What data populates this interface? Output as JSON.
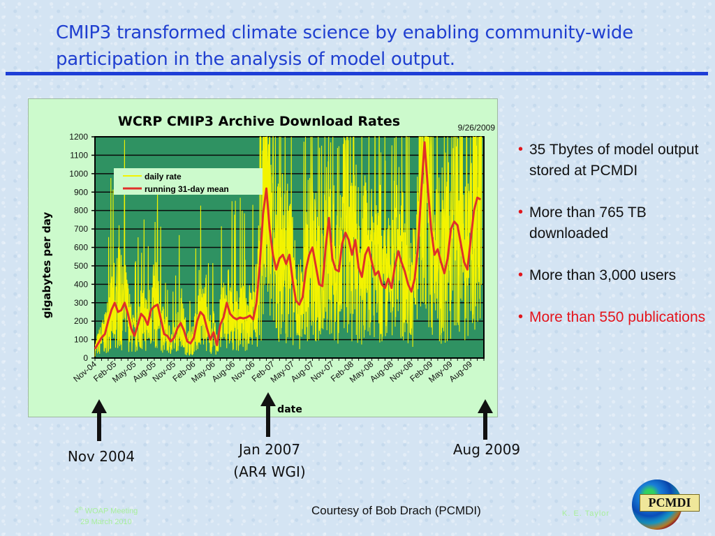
{
  "slide": {
    "title": "CMIP3 transformed climate science by enabling community-wide participation in the analysis of model output.",
    "bullets": [
      {
        "text": "35 Tbytes of model output stored at PCMDI",
        "color": "#111111"
      },
      {
        "text": " More than 765 TB downloaded",
        "color": "#111111"
      },
      {
        "text": "More than 3,000 users",
        "color": "#111111"
      },
      {
        "text": " More than 550 publications",
        "color": "#e4141c"
      }
    ],
    "annotations": [
      {
        "label": "Nov 2004"
      },
      {
        "label": "Jan 2007",
        "sublabel": "(AR4 WGI)"
      },
      {
        "label": "Aug 2009"
      }
    ],
    "footer": {
      "meeting_prefix": "4",
      "meeting_sup": "th",
      "meeting_rest": " WOAP Meeting",
      "date": "29 March 2010",
      "credit": "Courtesy of Bob Drach (PCMDI)",
      "author": "K. E. Taylor",
      "logo_text": "PCMDI"
    }
  },
  "chart_data": {
    "type": "line",
    "title": "WCRP CMIP3 Archive Download Rates",
    "date_stamp": "9/26/2009",
    "xlabel": "date",
    "ylabel": "gigabytes per day",
    "ylim": [
      0,
      1200
    ],
    "yticks": [
      0,
      100,
      200,
      300,
      400,
      500,
      600,
      700,
      800,
      900,
      1000,
      1100,
      1200
    ],
    "xlim_months": [
      0,
      59
    ],
    "xticks": [
      "Nov-04",
      "Feb-05",
      "May-05",
      "Aug-05",
      "Nov-05",
      "Feb-06",
      "May-06",
      "Aug-06",
      "Nov-06",
      "Feb-07",
      "May-07",
      "Aug-07",
      "Nov-07",
      "Feb-08",
      "May-08",
      "Aug-08",
      "Nov-08",
      "Feb-09",
      "May-09",
      "Aug-09"
    ],
    "grid": true,
    "legend_position": "top-left",
    "colors": {
      "plot_bg": "#2f9262",
      "daily": "#f3f300",
      "mean": "#e0302a",
      "grid": "#0a0a0a"
    },
    "series": [
      {
        "name": "running 31-day mean",
        "x_months": [
          0,
          0.5,
          1,
          1.5,
          2,
          2.5,
          3,
          3.5,
          4,
          4.5,
          5,
          5.5,
          6,
          6.5,
          7,
          7.5,
          8,
          8.5,
          9,
          9.5,
          10,
          10.5,
          11,
          11.5,
          12,
          12.5,
          13,
          13.5,
          14,
          14.5,
          15,
          15.5,
          16,
          16.5,
          17,
          17.5,
          18,
          18.5,
          19,
          19.5,
          20,
          20.5,
          21,
          21.5,
          22,
          22.5,
          23,
          23.5,
          24,
          24.5,
          25,
          25.5,
          26,
          26.5,
          27,
          27.5,
          28,
          28.5,
          29,
          29.5,
          30,
          30.5,
          31,
          31.5,
          32,
          32.5,
          33,
          33.5,
          34,
          34.5,
          35,
          35.5,
          36,
          36.5,
          37,
          37.5,
          38,
          38.5,
          39,
          39.5,
          40,
          40.5,
          41,
          41.5,
          42,
          42.5,
          43,
          43.5,
          44,
          44.5,
          45,
          45.5,
          46,
          46.5,
          47,
          47.5,
          48,
          48.5,
          49,
          49.5,
          50,
          50.5,
          51,
          51.5,
          52,
          52.5,
          53,
          53.5,
          54,
          54.5,
          55,
          55.5,
          56,
          56.5,
          57,
          57.5,
          58,
          58.5
        ],
        "values": [
          50,
          80,
          110,
          130,
          200,
          260,
          300,
          250,
          260,
          300,
          240,
          160,
          120,
          180,
          240,
          220,
          180,
          260,
          280,
          290,
          210,
          130,
          120,
          90,
          110,
          160,
          190,
          150,
          90,
          80,
          110,
          200,
          250,
          230,
          160,
          100,
          140,
          70,
          180,
          220,
          300,
          240,
          220,
          210,
          220,
          215,
          220,
          230,
          210,
          300,
          500,
          780,
          920,
          700,
          560,
          480,
          540,
          560,
          510,
          560,
          420,
          310,
          290,
          330,
          480,
          560,
          600,
          500,
          400,
          390,
          600,
          760,
          540,
          480,
          470,
          620,
          680,
          640,
          560,
          640,
          490,
          440,
          560,
          600,
          520,
          450,
          470,
          400,
          380,
          430,
          380,
          500,
          580,
          520,
          470,
          400,
          360,
          430,
          600,
          900,
          1170,
          920,
          700,
          560,
          590,
          520,
          460,
          540,
          700,
          740,
          720,
          620,
          520,
          480,
          640,
          800,
          870,
          860
        ]
      },
      {
        "name": "daily rate",
        "note": "noisy daily values fluctuating around the running mean, frequently spiking above 1200 GB/day after Jan-07"
      }
    ]
  }
}
